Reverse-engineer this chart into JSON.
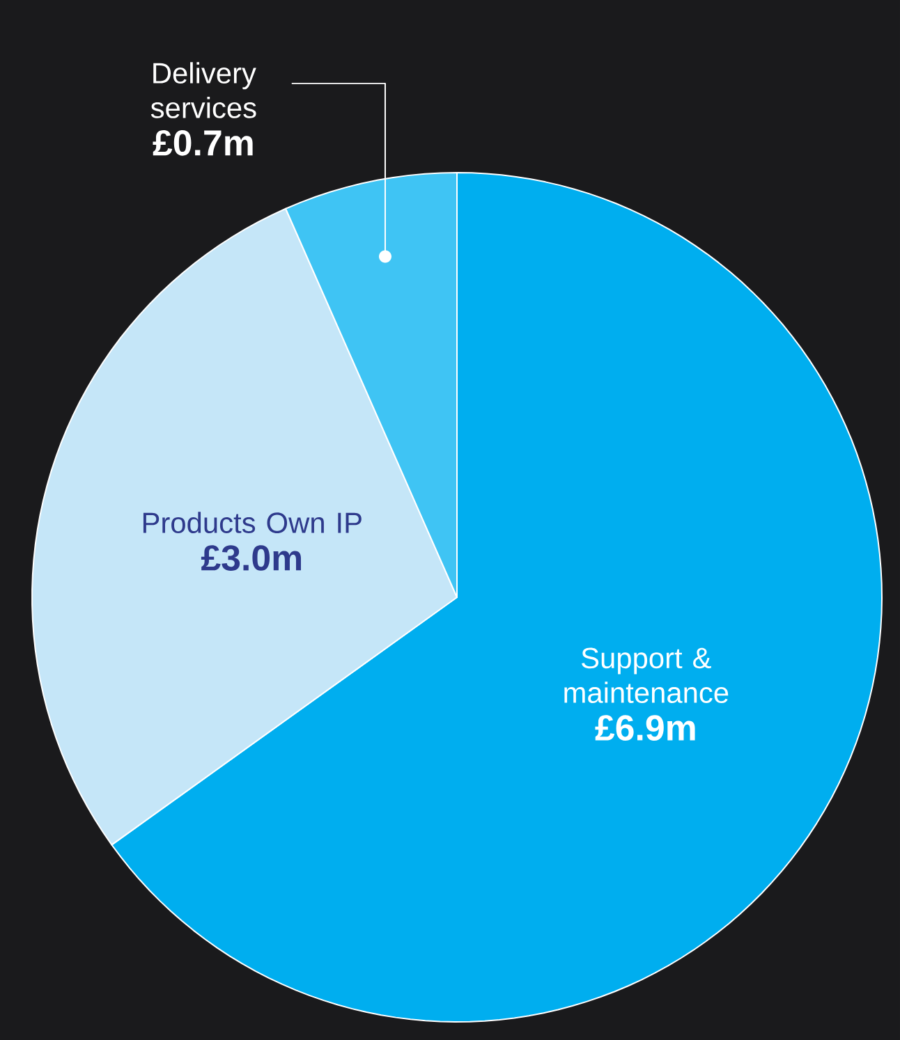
{
  "chart_data": {
    "type": "pie",
    "categories": [
      "Support & maintenance",
      "Products Own IP",
      "Delivery services"
    ],
    "values": [
      6.9,
      3.0,
      0.7
    ],
    "colors": [
      "#00aeef",
      "#c5e6f8",
      "#3fc4f4"
    ],
    "value_labels": [
      "£6.9m",
      "£3.0m",
      "£0.7m"
    ]
  }
}
